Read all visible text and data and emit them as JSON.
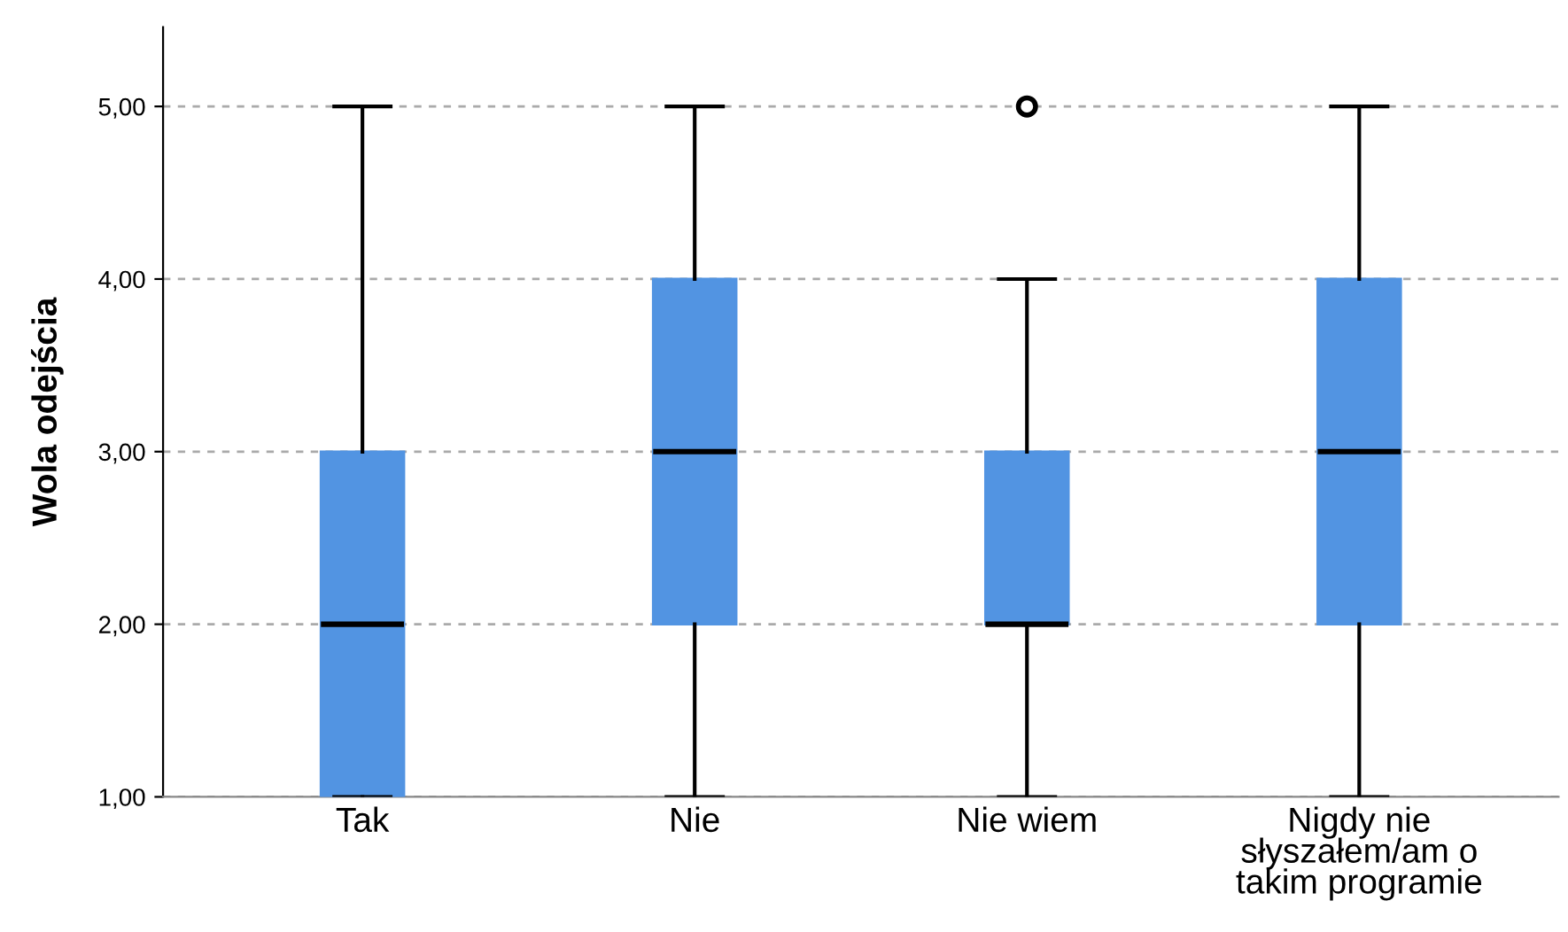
{
  "chart_data": {
    "type": "box",
    "ylabel": "Wola odejścia",
    "categories": [
      "Tak",
      "Nie",
      "Nie wiem",
      "Nigdy nie\nsłyszałem/am o\ntakim programie"
    ],
    "boxes": [
      {
        "low": 1,
        "q1": 1,
        "median": 2,
        "q3": 3,
        "high": 5
      },
      {
        "low": 1,
        "q1": 2,
        "median": 3,
        "q3": 4,
        "high": 5
      },
      {
        "low": 1,
        "q1": 2,
        "median": 2,
        "q3": 3,
        "high": 4,
        "outliers": [
          5
        ]
      },
      {
        "low": 1,
        "q1": 2,
        "median": 3,
        "q3": 4,
        "high": 5
      }
    ],
    "color": "#5294e2",
    "ylim": [
      1,
      5.46
    ],
    "yticks": [
      {
        "value": 1,
        "label": "1,00"
      },
      {
        "value": 2,
        "label": "2,00"
      },
      {
        "value": 3,
        "label": "3,00"
      },
      {
        "value": 4,
        "label": "4,00"
      },
      {
        "value": 5,
        "label": "5,00"
      }
    ],
    "grid": "y"
  }
}
